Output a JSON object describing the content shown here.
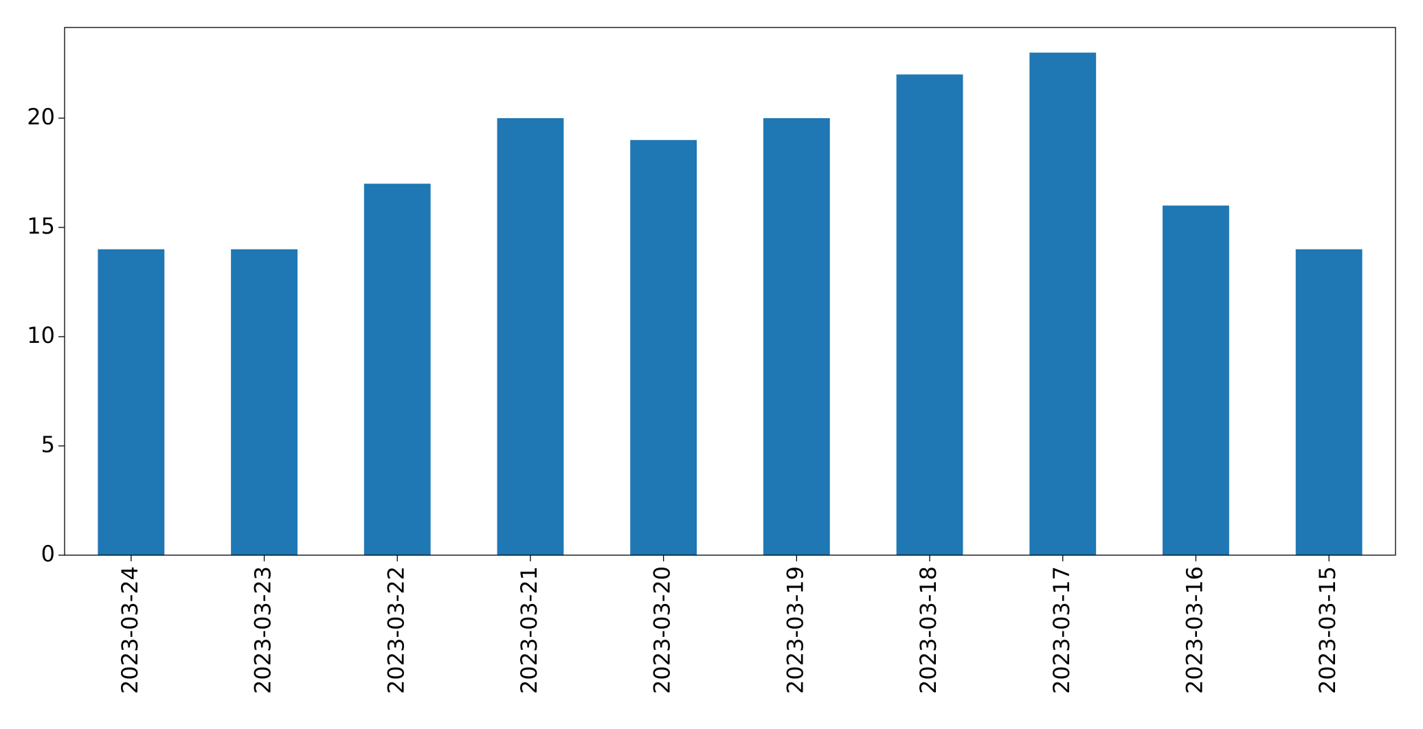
{
  "chart_data": {
    "type": "bar",
    "categories": [
      "2023-03-24",
      "2023-03-23",
      "2023-03-22",
      "2023-03-21",
      "2023-03-20",
      "2023-03-19",
      "2023-03-18",
      "2023-03-17",
      "2023-03-16",
      "2023-03-15"
    ],
    "values": [
      14,
      14,
      17,
      20,
      19,
      20,
      22,
      23,
      16,
      14
    ],
    "color": "#1f77b4",
    "ylim": [
      0,
      24.15
    ],
    "yticks": [
      0,
      5,
      10,
      15,
      20
    ],
    "grid": false
  }
}
